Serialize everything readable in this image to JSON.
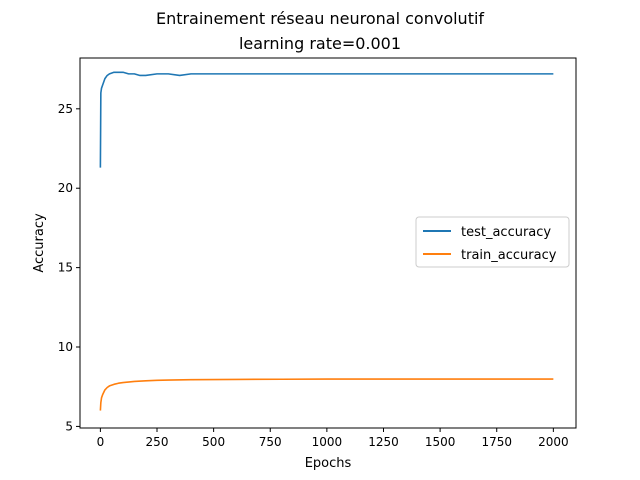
{
  "chart_data": {
    "type": "line",
    "title": "Entrainement réseau neuronal convolutif",
    "subtitle": "learning rate=0.001",
    "xlabel": "Epochs",
    "ylabel": "Accuracy",
    "xlim": [
      -90,
      2100
    ],
    "ylim": [
      4.9,
      28.2
    ],
    "x_ticks": [
      0,
      250,
      500,
      750,
      1000,
      1250,
      1500,
      1750,
      2000
    ],
    "y_ticks": [
      5,
      10,
      15,
      20,
      25
    ],
    "grid": false,
    "legend_position": "center-right",
    "series": [
      {
        "name": "test_accuracy",
        "color": "#1f77b4",
        "x": [
          0,
          2,
          5,
          10,
          20,
          30,
          40,
          60,
          80,
          100,
          125,
          150,
          175,
          200,
          250,
          300,
          350,
          400,
          450,
          500,
          600,
          700,
          800,
          900,
          1000,
          1100,
          1200,
          1300,
          1400,
          1500,
          1600,
          1700,
          1800,
          1900,
          2000
        ],
        "values": [
          21.3,
          26.0,
          26.3,
          26.5,
          26.9,
          27.1,
          27.2,
          27.3,
          27.3,
          27.3,
          27.2,
          27.2,
          27.1,
          27.1,
          27.2,
          27.2,
          27.1,
          27.2,
          27.2,
          27.2,
          27.2,
          27.2,
          27.2,
          27.2,
          27.2,
          27.2,
          27.2,
          27.2,
          27.2,
          27.2,
          27.2,
          27.2,
          27.2,
          27.2,
          27.2
        ]
      },
      {
        "name": "train_accuracy",
        "color": "#ff7f0e",
        "x": [
          0,
          2,
          5,
          10,
          20,
          30,
          40,
          60,
          80,
          100,
          150,
          200,
          250,
          300,
          400,
          500,
          600,
          800,
          1000,
          1200,
          1400,
          1600,
          1800,
          2000
        ],
        "values": [
          6.0,
          6.5,
          6.8,
          7.0,
          7.3,
          7.45,
          7.55,
          7.65,
          7.72,
          7.76,
          7.83,
          7.87,
          7.9,
          7.92,
          7.94,
          7.95,
          7.96,
          7.97,
          7.98,
          7.98,
          7.98,
          7.98,
          7.98,
          7.98
        ]
      }
    ]
  }
}
